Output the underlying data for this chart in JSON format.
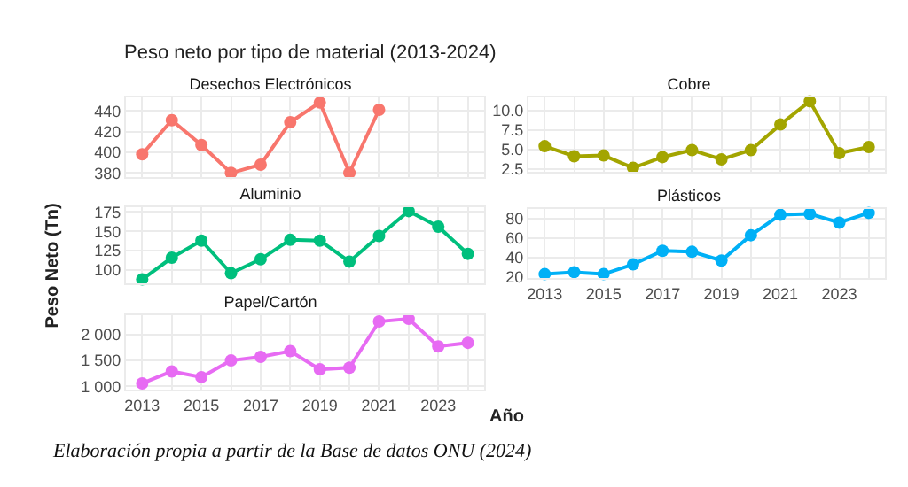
{
  "chart_data": [
    {
      "type": "other",
      "title": "Peso neto por tipo de material (2013-2024)",
      "xlabel": "Año",
      "ylabel": "Peso Neto (Tn)",
      "annotations": [
        "Elaboración propia a partir de la Base de datos ONU (2024)"
      ]
    },
    {
      "type": "line",
      "title": "Desechos Electrónicos",
      "x": [
        2013,
        2014,
        2015,
        2016,
        2017,
        2018,
        2019,
        2020,
        2021
      ],
      "series": [
        {
          "color": "#f8766d",
          "values": [
            398,
            431,
            407,
            380,
            388,
            429,
            448,
            380,
            441
          ]
        }
      ],
      "xlim": [
        2012.45,
        2024.55
      ],
      "xticks": [
        2013,
        {
          "value": 2014,
          "label": null
        },
        2015,
        {
          "value": 2016,
          "label": null
        },
        2017,
        {
          "value": 2018,
          "label": null
        },
        2019,
        {
          "value": 2020,
          "label": null
        },
        2021,
        {
          "value": 2022,
          "label": null
        },
        2023,
        {
          "value": 2024,
          "label": null
        }
      ],
      "ylim": [
        376,
        453
      ],
      "yticks": [
        380,
        400,
        420,
        440
      ],
      "grid": true,
      "marker": "circle",
      "line_style": "solid",
      "tick_labels": "y"
    },
    {
      "type": "line",
      "title": "Cobre",
      "x": [
        2013,
        2014,
        2015,
        2016,
        2017,
        2018,
        2019,
        2020,
        2021,
        2022,
        2023,
        2024
      ],
      "series": [
        {
          "color": "#a3a500",
          "values": [
            5.4,
            4.1,
            4.2,
            2.6,
            4.0,
            4.9,
            3.7,
            4.9,
            8.2,
            11.2,
            4.5,
            5.3
          ]
        }
      ],
      "xlim": [
        2012.45,
        2024.55
      ],
      "xticks": [
        2013,
        {
          "value": 2014,
          "label": null
        },
        2015,
        {
          "value": 2016,
          "label": null
        },
        2017,
        {
          "value": 2018,
          "label": null
        },
        2019,
        {
          "value": 2020,
          "label": null
        },
        2021,
        {
          "value": 2022,
          "label": null
        },
        2023,
        {
          "value": 2024,
          "label": null
        }
      ],
      "ylim": [
        2.1,
        11.7
      ],
      "yticks": [
        2.5,
        {
          "value": 5,
          "label": "5.0"
        },
        7.5,
        {
          "value": 10,
          "label": "10.0"
        }
      ],
      "grid": true,
      "marker": "circle",
      "line_style": "solid",
      "tick_labels": "y"
    },
    {
      "type": "line",
      "title": "Aluminio",
      "x": [
        2013,
        2014,
        2015,
        2016,
        2017,
        2018,
        2019,
        2020,
        2021,
        2022,
        2023,
        2024
      ],
      "series": [
        {
          "color": "#00bf7d",
          "values": [
            88,
            116,
            138,
            96,
            114,
            139,
            138,
            111,
            144,
            176,
            156,
            121
          ]
        }
      ],
      "xlim": [
        2012.45,
        2024.55
      ],
      "xticks": [
        2013,
        {
          "value": 2014,
          "label": null
        },
        2015,
        {
          "value": 2016,
          "label": null
        },
        2017,
        {
          "value": 2018,
          "label": null
        },
        2019,
        {
          "value": 2020,
          "label": null
        },
        2021,
        {
          "value": 2022,
          "label": null
        },
        2023,
        {
          "value": 2024,
          "label": null
        }
      ],
      "ylim": [
        83,
        181
      ],
      "yticks": [
        100,
        125,
        150,
        175
      ],
      "grid": true,
      "marker": "circle",
      "line_style": "solid",
      "tick_labels": "y"
    },
    {
      "type": "line",
      "title": "Plásticos",
      "x": [
        2013,
        2014,
        2015,
        2016,
        2017,
        2018,
        2019,
        2020,
        2021,
        2022,
        2023,
        2024
      ],
      "series": [
        {
          "color": "#00b0f6",
          "values": [
            23,
            25,
            23,
            33,
            47,
            46,
            37,
            63,
            84,
            85,
            76,
            86
          ]
        }
      ],
      "xlim": [
        2012.45,
        2024.55
      ],
      "xticks": [
        2013,
        {
          "value": 2014,
          "label": null
        },
        2015,
        {
          "value": 2016,
          "label": null
        },
        2017,
        {
          "value": 2018,
          "label": null
        },
        2019,
        {
          "value": 2020,
          "label": null
        },
        2021,
        {
          "value": 2022,
          "label": null
        },
        2023,
        {
          "value": 2024,
          "label": null
        }
      ],
      "ylim": [
        19,
        90
      ],
      "yticks": [
        20,
        40,
        60,
        80
      ],
      "grid": true,
      "marker": "circle",
      "line_style": "solid"
    },
    {
      "type": "line",
      "title": "Papel/Cartón",
      "x": [
        2013,
        2014,
        2015,
        2016,
        2017,
        2018,
        2019,
        2020,
        2021,
        2022,
        2023,
        2024
      ],
      "series": [
        {
          "color": "#e76bf3",
          "values": [
            1060,
            1290,
            1180,
            1500,
            1570,
            1680,
            1330,
            1360,
            2250,
            2300,
            1770,
            1840
          ]
        }
      ],
      "xlim": [
        2012.45,
        2024.55
      ],
      "xticks": [
        2013,
        {
          "value": 2014,
          "label": null
        },
        2015,
        {
          "value": 2016,
          "label": null
        },
        2017,
        {
          "value": 2018,
          "label": null
        },
        2019,
        {
          "value": 2020,
          "label": null
        },
        2021,
        {
          "value": 2022,
          "label": null
        },
        2023,
        {
          "value": 2024,
          "label": null
        }
      ],
      "ylim": [
        940,
        2370
      ],
      "yticks": [
        {
          "value": 1000,
          "label": "1 000"
        },
        {
          "value": 1500,
          "label": "1 500"
        },
        {
          "value": 2000,
          "label": "2 000"
        }
      ],
      "grid": true,
      "marker": "circle",
      "line_style": "solid"
    }
  ]
}
